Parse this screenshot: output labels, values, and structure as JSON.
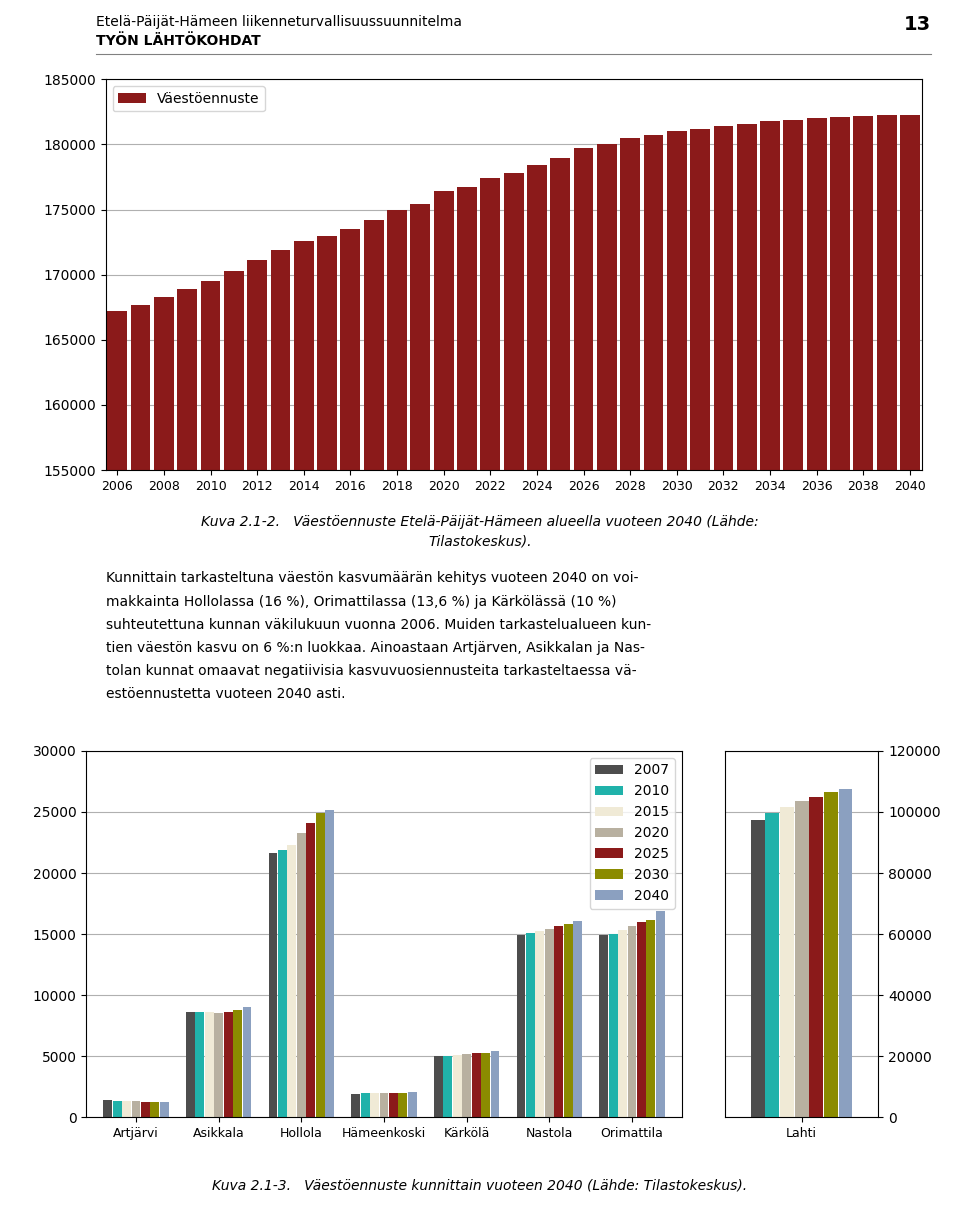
{
  "annotations": [
    "Etelä-Päijät-Hämeen liikenneturvallisuussuunnitelma",
    "TYÖN LÄHTÖKOHDAT",
    "13"
  ],
  "chart_data": [
    {
      "type": "bar",
      "categories": [
        "2006",
        null,
        "2008",
        null,
        "2010",
        null,
        "2012",
        null,
        "2014",
        null,
        "2016",
        null,
        "2018",
        null,
        "2020",
        null,
        "2022",
        null,
        "2024",
        null,
        "2026",
        null,
        "2028",
        null,
        "2030",
        null,
        "2032",
        null,
        "2034",
        null,
        "2036",
        null,
        "2038",
        null,
        "2040"
      ],
      "series": [
        {
          "name": "Väestöennuste",
          "color": "#8B1A1A",
          "values": [
            167200,
            167700,
            168300,
            168900,
            169500,
            170300,
            171100,
            171900,
            172600,
            173000,
            173500,
            174200,
            175000,
            175400,
            176400,
            176700,
            177400,
            177800,
            178400,
            179000,
            179700,
            180000,
            180500,
            180700,
            181000,
            181200,
            181400,
            181600,
            181800,
            181900,
            182000,
            182100,
            182200,
            182250,
            182300
          ]
        }
      ],
      "ylim": [
        155000,
        185000
      ],
      "yticks": [
        155000,
        160000,
        165000,
        170000,
        175000,
        180000,
        185000
      ],
      "grid": true,
      "legend": "upper left",
      "annotations": [
        "Kuva 2.1-2.   Väestöennuste Etelä-Päijät-Hämeen alueella vuoteen 2040 (Lähde:",
        "Tilastokeskus).",
        "Kunnittain tarkasteltuna väestön kasvumäärän kehitys vuoteen 2040 on voi-",
        "makkainta Hollolassa (16 %), Orimattilassa (13,6 %) ja Kärkölässä (10 %)",
        "suhteutettuna kunnan väkilukuun vuonna 2006. Muiden tarkastelualueen kun-",
        "tien väestön kasvu on 6 %:n luokkaa. Ainoastaan Artjärven, Asikkalan ja Nas-",
        "tolan kunnat omaavat negatiivisia kasvuvuosiennusteita tarkasteltaessa vä-",
        "estöennustetta vuoteen 2040 asti."
      ]
    },
    {
      "type": "bar",
      "categories": [
        "Artjärvi",
        "Asikkala",
        "Hollola",
        "Hämeenkoski",
        "Kärkölä",
        "Nastola",
        "Orimattila"
      ],
      "series": [
        {
          "name": "2007",
          "color": "#4D4D4D",
          "values": [
            1450,
            8650,
            21600,
            1900,
            5000,
            14900,
            14900
          ]
        },
        {
          "name": "2010",
          "color": "#20B2AA",
          "values": [
            1300,
            8600,
            21900,
            1950,
            5050,
            15100,
            15000
          ]
        },
        {
          "name": "2015",
          "color": "#F0EAD6",
          "values": [
            1320,
            8580,
            22300,
            1980,
            5100,
            15250,
            15350
          ]
        },
        {
          "name": "2020",
          "color": "#B8B0A0",
          "values": [
            1290,
            8550,
            23300,
            1980,
            5200,
            15450,
            15650
          ]
        },
        {
          "name": "2025",
          "color": "#8B1A1A",
          "values": [
            1280,
            8600,
            24100,
            1990,
            5220,
            15650,
            15950
          ]
        },
        {
          "name": "2030",
          "color": "#8B8B00",
          "values": [
            1280,
            8750,
            24900,
            2000,
            5260,
            15850,
            16150
          ]
        },
        {
          "name": "2040",
          "color": "#8BA0C0",
          "values": [
            1270,
            9000,
            25200,
            2100,
            5430,
            16100,
            16850
          ]
        }
      ],
      "ylim": [
        0,
        30000
      ],
      "yticks": [
        0,
        5000,
        10000,
        15000,
        20000,
        25000,
        30000
      ],
      "grid": true,
      "legend": "upper right",
      "annotations": [
        "Kuva 2.1-3.   Väestöennuste kunnittain vuoteen 2040 (Lähde: Tilastokeskus)."
      ]
    },
    {
      "type": "bar",
      "categories": [
        "Lahti"
      ],
      "series": [
        {
          "name": "2007",
          "color": "#4D4D4D",
          "values": [
            97500
          ]
        },
        {
          "name": "2010",
          "color": "#20B2AA",
          "values": [
            99500
          ]
        },
        {
          "name": "2015",
          "color": "#F0EAD6",
          "values": [
            101500
          ]
        },
        {
          "name": "2020",
          "color": "#B8B0A0",
          "values": [
            103500
          ]
        },
        {
          "name": "2025",
          "color": "#8B1A1A",
          "values": [
            105000
          ]
        },
        {
          "name": "2030",
          "color": "#8B8B00",
          "values": [
            106500
          ]
        },
        {
          "name": "2040",
          "color": "#8BA0C0",
          "values": [
            107500
          ]
        }
      ],
      "ylim": [
        0,
        120000
      ],
      "yticks": [
        0,
        20000,
        40000,
        60000,
        80000,
        100000,
        120000
      ],
      "grid": true
    }
  ]
}
